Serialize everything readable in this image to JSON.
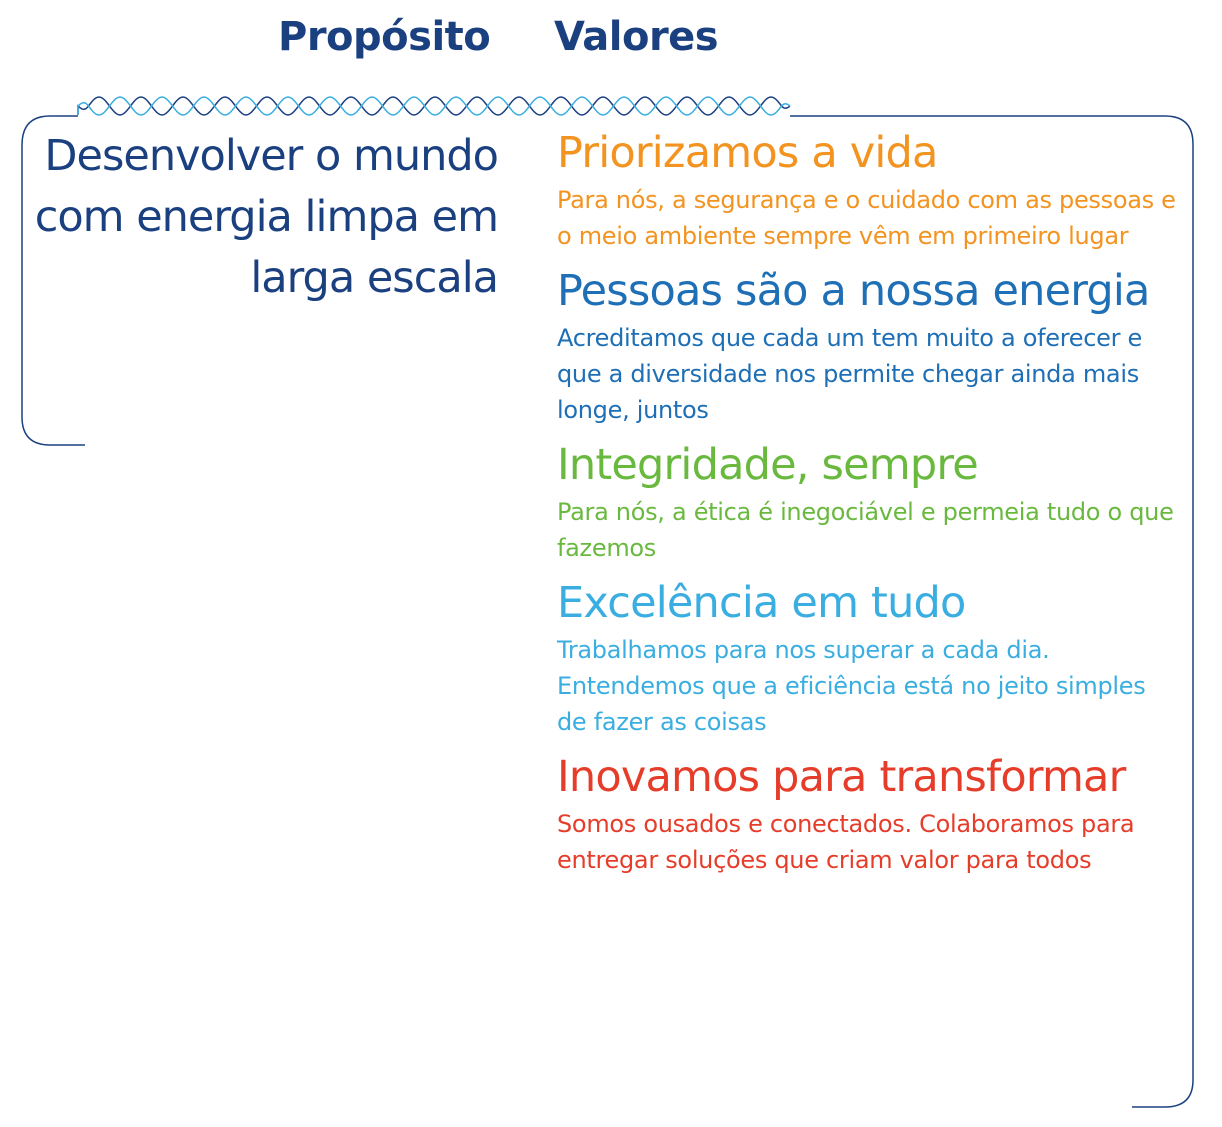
{
  "headings": {
    "purpose": "Propósito",
    "values": "Valores"
  },
  "purpose": "Desenvolver o mundo com energia limpa em larga escala",
  "colors": {
    "navy": "#1b4080",
    "wave_light": "#3aaee0"
  },
  "values": [
    {
      "title": "Priorizamos a vida",
      "text": "Para nós, a segurança e o cuidado com as pessoas e o meio ambiente sempre vêm em primeiro lugar",
      "color": "#f39320"
    },
    {
      "title": "Pessoas são a nossa energia",
      "text": "Acreditamos que cada um tem muito a oferecer e que a diversidade nos permite chegar ainda mais longe, juntos",
      "color": "#1e6fb5"
    },
    {
      "title": "Integridade, sempre",
      "text": "Para nós, a ética é inegociável e permeia tudo o que fazemos",
      "color": "#6ab93f"
    },
    {
      "title": "Excelência em tudo",
      "text": "Trabalhamos para nos superar a cada dia. Entendemos que a eficiência está no jeito simples de fazer as coisas",
      "color": "#3aaee0"
    },
    {
      "title": "Inovamos para transformar",
      "text": "Somos ousados e conectados. Colaboramos para entregar soluções que criam valor para todos",
      "color": "#e63d2a"
    }
  ]
}
